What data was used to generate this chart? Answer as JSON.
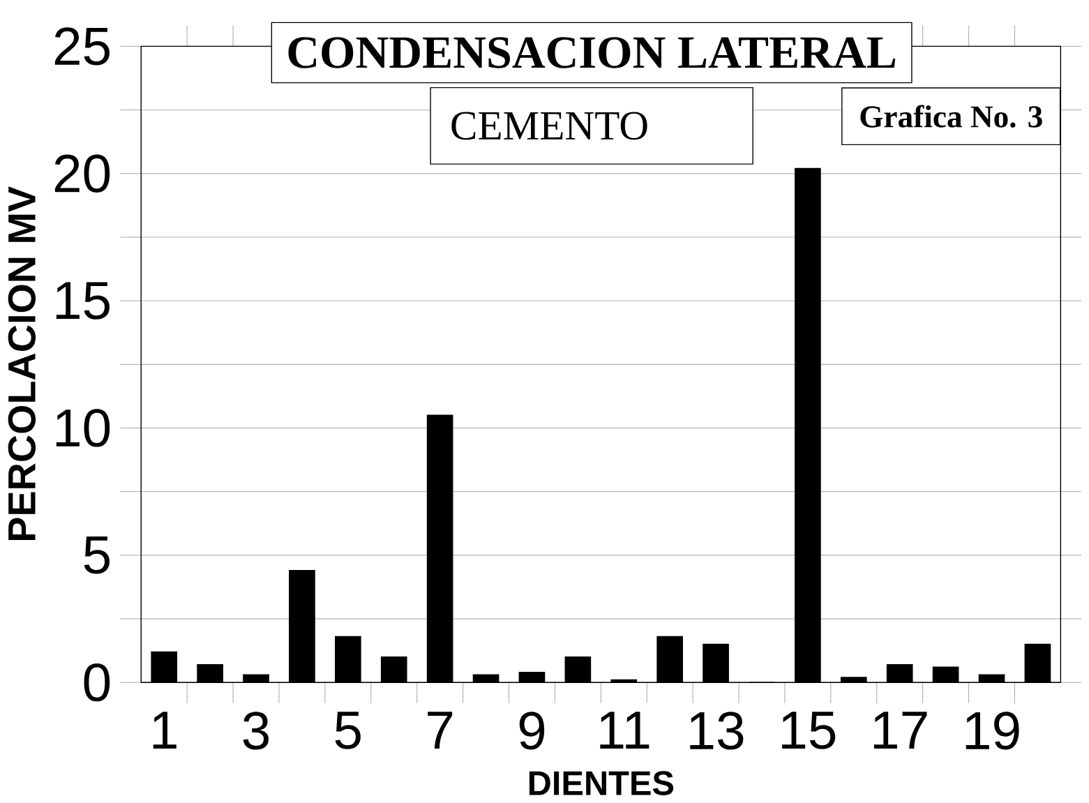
{
  "chart_data": {
    "type": "bar",
    "title": "CONDENSACION LATERAL",
    "subtitle": "CEMENTO",
    "xlabel": "DIENTES",
    "ylabel": "PERCOLACION MV",
    "annotations": [
      "Grafica No. 3"
    ],
    "categories": [
      "1",
      null,
      "3",
      null,
      "5",
      null,
      "7",
      null,
      "9",
      null,
      "11",
      null,
      "13",
      null,
      "15",
      null,
      "17",
      null,
      "19",
      null
    ],
    "values": [
      1.2,
      0.7,
      0.3,
      4.4,
      1.8,
      1.0,
      10.5,
      0.3,
      0.4,
      1.0,
      0.1,
      1.8,
      1.5,
      0,
      20.2,
      0.2,
      0.7,
      0.6,
      0.3,
      1.5
    ],
    "color": "#000000",
    "ylim": [
      0,
      25
    ],
    "yticks": [
      0,
      {
        "value": 2.5,
        "label": null
      },
      5,
      {
        "value": 7.5,
        "label": null
      },
      10,
      {
        "value": 12.5,
        "label": null
      },
      15,
      {
        "value": 17.5,
        "label": null
      },
      20,
      {
        "value": 22.5,
        "label": null
      },
      25
    ],
    "grid": "y"
  }
}
